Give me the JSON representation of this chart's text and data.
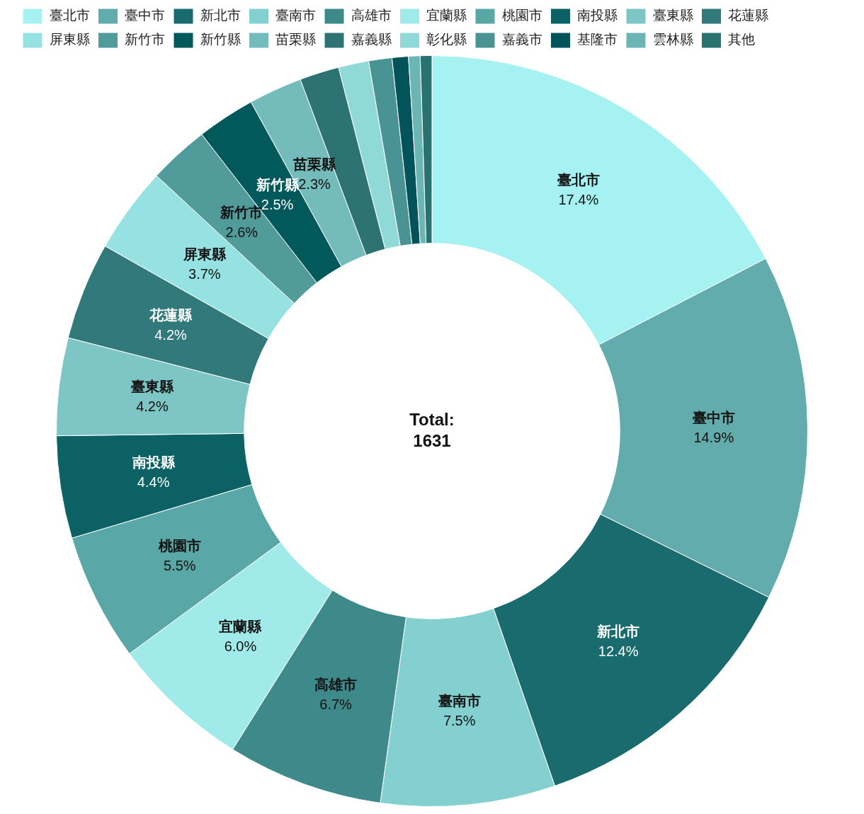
{
  "chart_data": {
    "type": "donut",
    "categories": [
      "臺北市",
      "臺中市",
      "新北市",
      "臺南市",
      "高雄市",
      "宜蘭縣",
      "桃園市",
      "南投縣",
      "臺東縣",
      "花蓮縣",
      "屏東縣",
      "新竹市",
      "新竹縣",
      "苗栗縣",
      "嘉義縣",
      "彰化縣",
      "嘉義市",
      "基隆市",
      "雲林縣",
      "其他"
    ],
    "values": [
      17.4,
      14.9,
      12.4,
      7.5,
      6.7,
      6.0,
      5.5,
      4.4,
      4.2,
      4.2,
      3.7,
      2.6,
      2.5,
      2.3,
      1.7,
      1.3,
      1.0,
      0.7,
      0.5,
      0.5
    ],
    "colors": [
      "#a6f2f2",
      "#62acad",
      "#196b6e",
      "#84cfcf",
      "#3e8a8b",
      "#a0eaea",
      "#5aa7a7",
      "#0b6163",
      "#7ec6c6",
      "#31797b",
      "#96e2e2",
      "#519b9b",
      "#02595c",
      "#74bbbb",
      "#2d7374",
      "#90d9d9",
      "#4a9394",
      "#02545a",
      "#6cb5b5",
      "#2a7171"
    ],
    "value_labels": [
      "17.4%",
      "14.9%",
      "12.4%",
      "7.5%",
      "6.7%",
      "6.0%",
      "5.5%",
      "4.4%",
      "4.2%",
      "4.2%",
      "3.7%",
      "2.6%",
      "2.5%",
      "2.3%",
      null,
      null,
      null,
      null,
      null,
      null
    ],
    "legend": "top left",
    "annotations": [
      "Total: 1631"
    ]
  }
}
